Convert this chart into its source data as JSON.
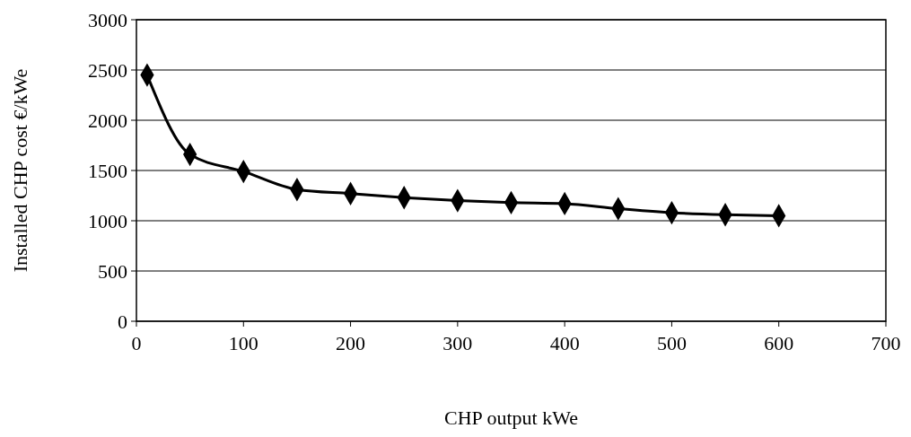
{
  "chart_data": {
    "type": "line",
    "xlabel": "CHP output kWe",
    "ylabel": "Installed CHP cost €/kWe",
    "x": [
      10,
      50,
      100,
      150,
      200,
      250,
      300,
      350,
      400,
      450,
      500,
      550,
      600
    ],
    "series": [
      {
        "color": "#000000",
        "values": [
          2450,
          1660,
          1490,
          1310,
          1270,
          1230,
          1200,
          1180,
          1170,
          1120,
          1080,
          1060,
          1050
        ]
      }
    ],
    "xlim": [
      0,
      700
    ],
    "xticks": [
      0,
      100,
      200,
      300,
      400,
      500,
      600,
      700
    ],
    "ylim": [
      0,
      3000
    ],
    "yticks": [
      0,
      500,
      1000,
      1500,
      2000,
      2500,
      3000
    ],
    "grid": "y",
    "marker": "diamond",
    "line_style": "solid"
  }
}
